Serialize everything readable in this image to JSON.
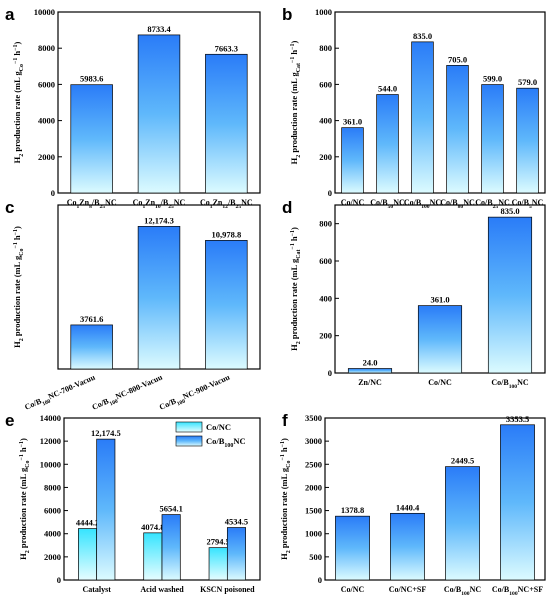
{
  "colors": {
    "bar_light": "#dcfbff",
    "bar_cyan": "#36e4ff",
    "bar_blue": "#2a7cf8",
    "frame": "#000000"
  },
  "chart_data": [
    {
      "letter": "a",
      "type": "bar",
      "ylabel": "H₂ production rate (mL g_Co⁻¹ h⁻¹)",
      "ylim": [
        0,
        10000
      ],
      "yticks": [
        0,
        2000,
        4000,
        6000,
        8000,
        10000
      ],
      "categories": [
        "Co₁Zn₈/B₂₅NC",
        "Co₁Zn₁₀/B₂₅NC",
        "Co₁Zn₁₂/B₂₅NC"
      ],
      "values": [
        5983.6,
        8733.4,
        7663.3
      ],
      "value_labels": [
        "5983.6",
        "8733.4",
        "7663.3"
      ]
    },
    {
      "letter": "b",
      "type": "bar",
      "ylabel": "H₂ production rate (mL g_Cat⁻¹ h⁻¹)",
      "ylim": [
        0,
        1000
      ],
      "yticks": [
        0,
        200,
        400,
        600,
        800,
        1000
      ],
      "categories": [
        "Co/NC",
        "Co/B₅₀NC",
        "Co/B₁₀₀NC",
        "Co/B₈₀NC",
        "Co/B₂₅NC",
        "Co/B₅NC"
      ],
      "values": [
        361.0,
        544.0,
        835.0,
        705.0,
        599.0,
        579.0
      ],
      "value_labels": [
        "361.0",
        "544.0",
        "835.0",
        "705.0",
        "599.0",
        "579.0"
      ]
    },
    {
      "letter": "c",
      "type": "bar",
      "ylabel": "H₂ production rate (mL g_Co⁻¹ h⁻¹)",
      "ylim": [
        0,
        14000
      ],
      "yticks": [],
      "categories": [
        "Co/B₁₀₀NC-700-Vacuu",
        "Co/B₁₀₀NC-800-Vacuu",
        "Co/B₁₀₀NC-900-Vacuu"
      ],
      "values": [
        3761.6,
        12174.3,
        10978.8
      ],
      "value_labels": [
        "3761.6",
        "12,174.3",
        "10,978.8"
      ]
    },
    {
      "letter": "d",
      "type": "bar",
      "ylabel": "H₂ production rate (mL g_Cat⁻¹ h⁻¹)",
      "ylim": [
        0,
        900
      ],
      "yticks": [
        0,
        200,
        400,
        600,
        800
      ],
      "categories": [
        "Zn/NC",
        "Co/NC",
        "Co/B₁₀₀NC"
      ],
      "values": [
        24.0,
        361.0,
        835.0
      ],
      "value_labels": [
        "24.0",
        "361.0",
        "835.0"
      ]
    },
    {
      "letter": "e",
      "type": "bar",
      "ylabel": "H₂ production rate (mL g_Co⁻¹ h⁻¹)",
      "ylim": [
        0,
        14000
      ],
      "yticks": [
        0,
        2000,
        4000,
        6000,
        8000,
        10000,
        12000,
        14000
      ],
      "categories": [
        "Catalyst",
        "Acid washed",
        "KSCN poisoned"
      ],
      "series": [
        {
          "name": "Co/NC",
          "values": [
            4444.2,
            4074.8,
            2794.5
          ],
          "value_labels": [
            "4444.2",
            "4074.8",
            "2794.5"
          ]
        },
        {
          "name": "Co/B₁₀₀NC",
          "values": [
            12174.5,
            5654.1,
            4534.5
          ],
          "value_labels": [
            "12,174.5",
            "5654.1",
            "4534.5"
          ]
        }
      ],
      "legend": "top-right"
    },
    {
      "letter": "f",
      "type": "bar",
      "ylabel": "H₂ production rate (mL g_Co⁻¹ h⁻¹)",
      "ylim": [
        0,
        3500
      ],
      "yticks": [
        0,
        500,
        1000,
        1500,
        2000,
        2500,
        3000,
        3500
      ],
      "categories": [
        "Co/NC",
        "Co/NC+SF",
        "Co/B₁₀₀NC",
        "Co/B₁₀₀NC+SF"
      ],
      "values": [
        1378.8,
        1440.4,
        2449.5,
        3353.5
      ],
      "value_labels": [
        "1378.8",
        "1440.4",
        "2449.5",
        "3353.5"
      ]
    }
  ]
}
